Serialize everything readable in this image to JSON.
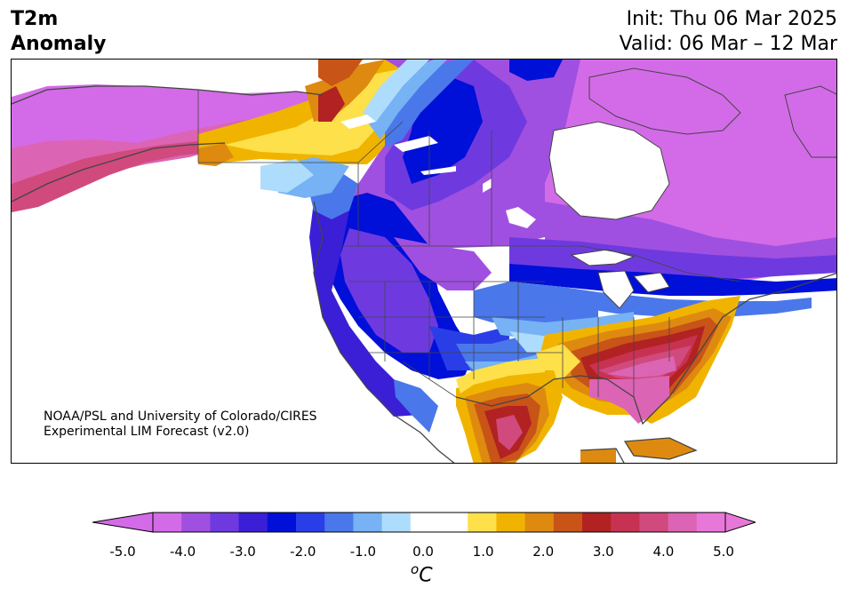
{
  "title": {
    "left_line1": "T2m",
    "left_line2": "Anomaly",
    "init": "Init: Thu 06 Mar 2025",
    "valid": "Valid: 06 Mar – 12 Mar"
  },
  "credit": {
    "line1": "NOAA/PSL and University of Colorado/CIRES",
    "line2": "Experimental LIM Forecast (v2.0)"
  },
  "colorbar": {
    "unit_base": "C",
    "unit_sup": "o",
    "tick_labels": [
      "-5.0",
      "-4.0",
      "-3.0",
      "-2.0",
      "-1.0",
      "0.0",
      "1.0",
      "2.0",
      "3.0",
      "4.0",
      "5.0"
    ],
    "bins": [
      {
        "color": "#d36be8"
      },
      {
        "color": "#a050e0"
      },
      {
        "color": "#6e3ae0"
      },
      {
        "color": "#3a1fd6"
      },
      {
        "color": "#0010d8"
      },
      {
        "color": "#2a3ee8"
      },
      {
        "color": "#4a78ea"
      },
      {
        "color": "#76b2f4"
      },
      {
        "color": "#aedcfc"
      },
      {
        "color": "#ffffff"
      },
      {
        "color": "#ffffff"
      },
      {
        "color": "#fde04a"
      },
      {
        "color": "#f0b400"
      },
      {
        "color": "#de8a10"
      },
      {
        "color": "#c85418"
      },
      {
        "color": "#b22222"
      },
      {
        "color": "#c83252"
      },
      {
        "color": "#d04a7e"
      },
      {
        "color": "#dc64b4"
      },
      {
        "color": "#e878d8"
      }
    ],
    "extend_low_color": "#d36be8",
    "extend_high_color": "#e878d8"
  },
  "map": {
    "projection": "Lambert conformal, North America",
    "colors": {
      "purple": "#d36be8",
      "violet": "#a050e0",
      "indigo": "#6e3ae0",
      "blue_dark": "#0010d8",
      "blue": "#2a3ee8",
      "blue_mid": "#4a78ea",
      "blue_light": "#76b2f4",
      "blue_pale": "#aedcfc",
      "yellow": "#fde04a",
      "gold": "#f0b400",
      "orange": "#de8a10",
      "orange_dark": "#c85418",
      "red": "#b22222",
      "crimson": "#c83252",
      "rose": "#d04a7e",
      "pink": "#dc64b4",
      "magenta": "#e878d8"
    }
  }
}
